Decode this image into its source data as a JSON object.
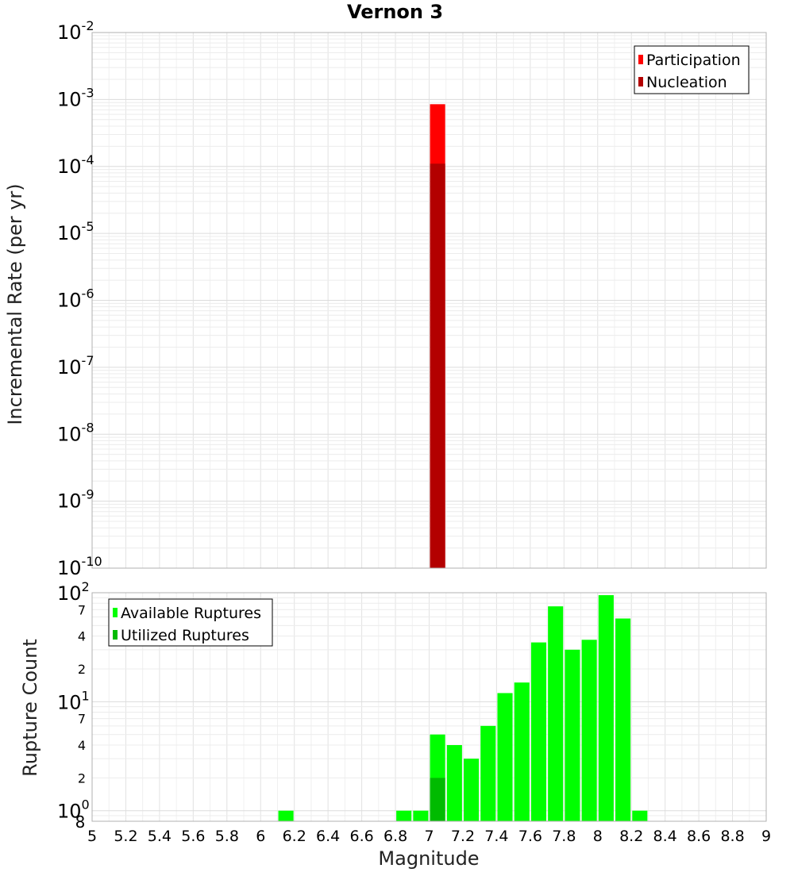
{
  "chart_data": [
    {
      "type": "bar",
      "title": "Vernon 3",
      "xlabel": "",
      "ylabel": "Incremental Rate (per yr)",
      "yscale": "log",
      "ylim": [
        1e-10,
        0.01
      ],
      "xlim": [
        5,
        9
      ],
      "grid": true,
      "legend_position": "top-right",
      "y_ticks": [
        {
          "base": "10",
          "exp": "-2"
        },
        {
          "base": "10",
          "exp": "-3"
        },
        {
          "base": "10",
          "exp": "-4"
        },
        {
          "base": "10",
          "exp": "-5"
        },
        {
          "base": "10",
          "exp": "-6"
        },
        {
          "base": "10",
          "exp": "-7"
        },
        {
          "base": "10",
          "exp": "-8"
        },
        {
          "base": "10",
          "exp": "-9"
        },
        {
          "base": "10",
          "exp": "-10"
        }
      ],
      "series": [
        {
          "name": "Participation",
          "color": "#ff0000",
          "x": [
            7.05
          ],
          "values": [
            0.00085
          ]
        },
        {
          "name": "Nucleation",
          "color": "#b30000",
          "x": [
            7.05
          ],
          "values": [
            0.00011
          ]
        }
      ]
    },
    {
      "type": "bar",
      "title": "",
      "xlabel": "Magnitude",
      "ylabel": "Rupture Count",
      "yscale": "log",
      "ylim": [
        0.8,
        100
      ],
      "xlim": [
        5,
        9
      ],
      "grid": true,
      "legend_position": "top-left",
      "x_ticks": [
        "5",
        "5.2",
        "5.4",
        "5.6",
        "5.8",
        "6",
        "6.2",
        "6.4",
        "6.6",
        "6.8",
        "7",
        "7.2",
        "7.4",
        "7.6",
        "7.8",
        "8",
        "8.2",
        "8.4",
        "8.6",
        "8.8",
        "9"
      ],
      "y_ticks": [
        {
          "value": 100,
          "base": "10",
          "exp": "2"
        },
        {
          "value": 70,
          "label": "7"
        },
        {
          "value": 40,
          "label": "4"
        },
        {
          "value": 20,
          "label": "2"
        },
        {
          "value": 10,
          "base": "10",
          "exp": "1"
        },
        {
          "value": 7,
          "label": "7"
        },
        {
          "value": 4,
          "label": "4"
        },
        {
          "value": 2,
          "label": "2"
        },
        {
          "value": 1,
          "base": "10",
          "exp": "0"
        },
        {
          "value": 0.8,
          "label": "8"
        }
      ],
      "series": [
        {
          "name": "Available Ruptures",
          "color": "#00ff00",
          "x": [
            6.15,
            6.85,
            6.95,
            7.05,
            7.15,
            7.25,
            7.35,
            7.45,
            7.55,
            7.65,
            7.75,
            7.85,
            7.95,
            8.05,
            8.15,
            8.25
          ],
          "values": [
            1,
            1,
            1,
            5,
            4,
            3,
            6,
            12,
            15,
            35,
            75,
            30,
            37,
            95,
            58,
            1
          ]
        },
        {
          "name": "Utilized Ruptures",
          "color": "#00bb00",
          "x": [
            7.05
          ],
          "values": [
            2
          ]
        }
      ]
    }
  ]
}
